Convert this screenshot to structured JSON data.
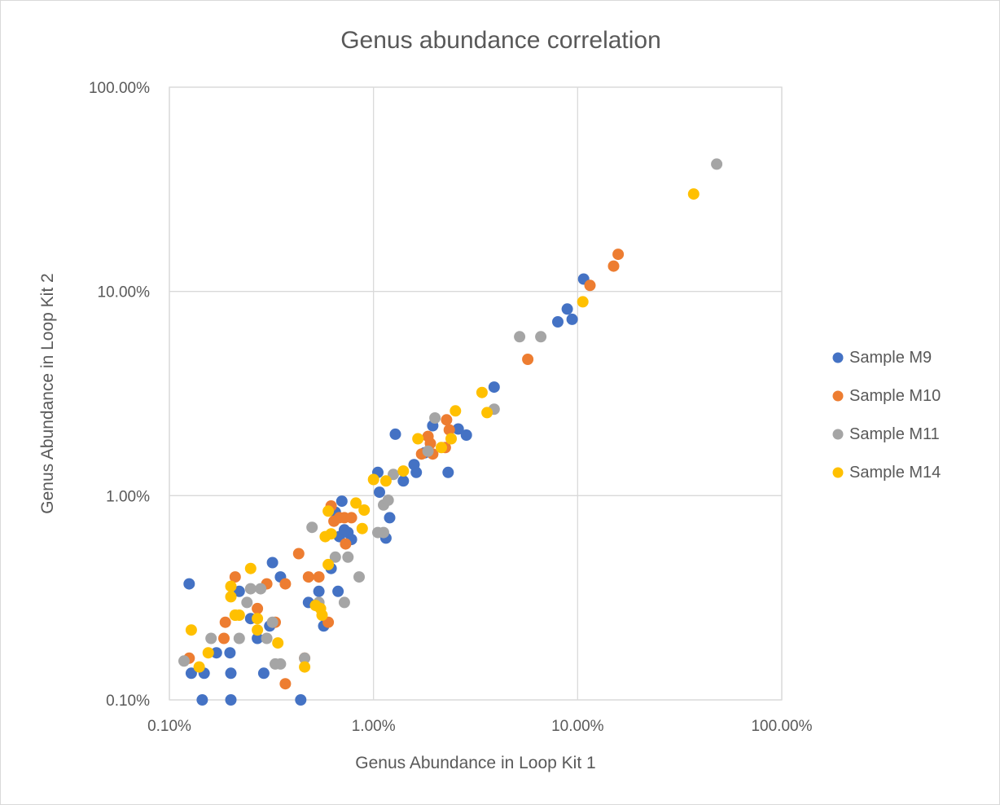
{
  "chart_data": {
    "type": "scatter",
    "title": "Genus abundance correlation",
    "xlabel": "Genus Abundance  in Loop Kit 1",
    "ylabel": "Genus Abundance in Loop Kit 2",
    "x_scale": "log",
    "y_scale": "log",
    "xlim": [
      0.001,
      1
    ],
    "ylim": [
      0.001,
      1
    ],
    "x_ticks": [
      0.001,
      0.01,
      0.1,
      1
    ],
    "y_ticks": [
      0.001,
      0.01,
      0.1,
      1
    ],
    "x_tick_labels": [
      "0.10%",
      "1.00%",
      "10.00%",
      "100.00%"
    ],
    "y_tick_labels": [
      "0.10%",
      "1.00%",
      "10.00%",
      "100.00%"
    ],
    "grid": true,
    "legend_position": "right",
    "series": [
      {
        "name": "Sample M9",
        "color": "#4472C4",
        "points": [
          [
            0.00125,
            0.0037
          ],
          [
            0.00128,
            0.00135
          ],
          [
            0.00145,
            0.001
          ],
          [
            0.00148,
            0.00135
          ],
          [
            0.0017,
            0.0017
          ],
          [
            0.00198,
            0.0017
          ],
          [
            0.002,
            0.00135
          ],
          [
            0.002,
            0.001
          ],
          [
            0.0022,
            0.0034
          ],
          [
            0.0025,
            0.0025
          ],
          [
            0.0027,
            0.002
          ],
          [
            0.0029,
            0.00135
          ],
          [
            0.0031,
            0.0023
          ],
          [
            0.0032,
            0.0047
          ],
          [
            0.0035,
            0.004
          ],
          [
            0.0044,
            0.001
          ],
          [
            0.0048,
            0.003
          ],
          [
            0.0054,
            0.0034
          ],
          [
            0.0057,
            0.0023
          ],
          [
            0.0062,
            0.0044
          ],
          [
            0.0065,
            0.0083
          ],
          [
            0.0067,
            0.0034
          ],
          [
            0.0068,
            0.0063
          ],
          [
            0.007,
            0.0094
          ],
          [
            0.0072,
            0.0068
          ],
          [
            0.0075,
            0.0066
          ],
          [
            0.0078,
            0.0061
          ],
          [
            0.0105,
            0.013
          ],
          [
            0.0107,
            0.0104
          ],
          [
            0.0115,
            0.0062
          ],
          [
            0.012,
            0.0078
          ],
          [
            0.0128,
            0.02
          ],
          [
            0.014,
            0.0118
          ],
          [
            0.0158,
            0.0142
          ],
          [
            0.0162,
            0.013
          ],
          [
            0.0178,
            0.0162
          ],
          [
            0.0195,
            0.022
          ],
          [
            0.0232,
            0.013
          ],
          [
            0.026,
            0.0212
          ],
          [
            0.0285,
            0.0198
          ],
          [
            0.039,
            0.034
          ],
          [
            0.08,
            0.071
          ],
          [
            0.089,
            0.082
          ],
          [
            0.094,
            0.073
          ],
          [
            0.107,
            0.115
          ]
        ]
      },
      {
        "name": "Sample M10",
        "color": "#ED7D31",
        "points": [
          [
            0.00125,
            0.0016
          ],
          [
            0.00185,
            0.002
          ],
          [
            0.00188,
            0.0024
          ],
          [
            0.0021,
            0.004
          ],
          [
            0.0027,
            0.0028
          ],
          [
            0.003,
            0.0037
          ],
          [
            0.0033,
            0.0024
          ],
          [
            0.0037,
            0.0037
          ],
          [
            0.0037,
            0.0012
          ],
          [
            0.0043,
            0.0052
          ],
          [
            0.0046,
            0.0016
          ],
          [
            0.0048,
            0.004
          ],
          [
            0.0054,
            0.004
          ],
          [
            0.006,
            0.0024
          ],
          [
            0.0062,
            0.0089
          ],
          [
            0.0064,
            0.0075
          ],
          [
            0.0068,
            0.0078
          ],
          [
            0.0072,
            0.0078
          ],
          [
            0.0073,
            0.0058
          ],
          [
            0.0078,
            0.0078
          ],
          [
            0.0172,
            0.016
          ],
          [
            0.0185,
            0.0195
          ],
          [
            0.019,
            0.018
          ],
          [
            0.0195,
            0.016
          ],
          [
            0.0225,
            0.0172
          ],
          [
            0.0228,
            0.0235
          ],
          [
            0.0235,
            0.021
          ],
          [
            0.057,
            0.0465
          ],
          [
            0.115,
            0.107
          ],
          [
            0.15,
            0.133
          ],
          [
            0.158,
            0.152
          ]
        ]
      },
      {
        "name": "Sample M11",
        "color": "#A5A5A5",
        "points": [
          [
            0.00118,
            0.00155
          ],
          [
            0.0016,
            0.002
          ],
          [
            0.0022,
            0.002
          ],
          [
            0.0024,
            0.003
          ],
          [
            0.0025,
            0.0035
          ],
          [
            0.0028,
            0.0035
          ],
          [
            0.003,
            0.002
          ],
          [
            0.0032,
            0.0024
          ],
          [
            0.0033,
            0.0015
          ],
          [
            0.0035,
            0.0015
          ],
          [
            0.0046,
            0.0016
          ],
          [
            0.005,
            0.007
          ],
          [
            0.0054,
            0.003
          ],
          [
            0.0065,
            0.005
          ],
          [
            0.0072,
            0.003
          ],
          [
            0.0075,
            0.005
          ],
          [
            0.0085,
            0.004
          ],
          [
            0.0105,
            0.0066
          ],
          [
            0.0112,
            0.0066
          ],
          [
            0.0112,
            0.009
          ],
          [
            0.0118,
            0.0095
          ],
          [
            0.0125,
            0.0127
          ],
          [
            0.0185,
            0.0165
          ],
          [
            0.02,
            0.024
          ],
          [
            0.039,
            0.0265
          ],
          [
            0.052,
            0.06
          ],
          [
            0.066,
            0.06
          ],
          [
            0.48,
            0.42
          ]
        ]
      },
      {
        "name": "Sample M14",
        "color": "#FFC000",
        "points": [
          [
            0.00128,
            0.0022
          ],
          [
            0.0014,
            0.00145
          ],
          [
            0.00155,
            0.0017
          ],
          [
            0.002,
            0.0036
          ],
          [
            0.002,
            0.0032
          ],
          [
            0.0021,
            0.0026
          ],
          [
            0.0021,
            0.0026
          ],
          [
            0.0022,
            0.0026
          ],
          [
            0.0025,
            0.0044
          ],
          [
            0.0027,
            0.0025
          ],
          [
            0.0027,
            0.0022
          ],
          [
            0.0034,
            0.0019
          ],
          [
            0.0046,
            0.00145
          ],
          [
            0.0052,
            0.0029
          ],
          [
            0.0055,
            0.0028
          ],
          [
            0.0056,
            0.0026
          ],
          [
            0.0058,
            0.0063
          ],
          [
            0.006,
            0.0084
          ],
          [
            0.006,
            0.0046
          ],
          [
            0.0062,
            0.0065
          ],
          [
            0.0082,
            0.0092
          ],
          [
            0.0088,
            0.0069
          ],
          [
            0.009,
            0.0085
          ],
          [
            0.01,
            0.012
          ],
          [
            0.0115,
            0.0118
          ],
          [
            0.014,
            0.0132
          ],
          [
            0.0165,
            0.019
          ],
          [
            0.0215,
            0.0172
          ],
          [
            0.024,
            0.019
          ],
          [
            0.0252,
            0.026
          ],
          [
            0.034,
            0.032
          ],
          [
            0.036,
            0.0255
          ],
          [
            0.106,
            0.089
          ],
          [
            0.37,
            0.3
          ]
        ]
      }
    ]
  }
}
